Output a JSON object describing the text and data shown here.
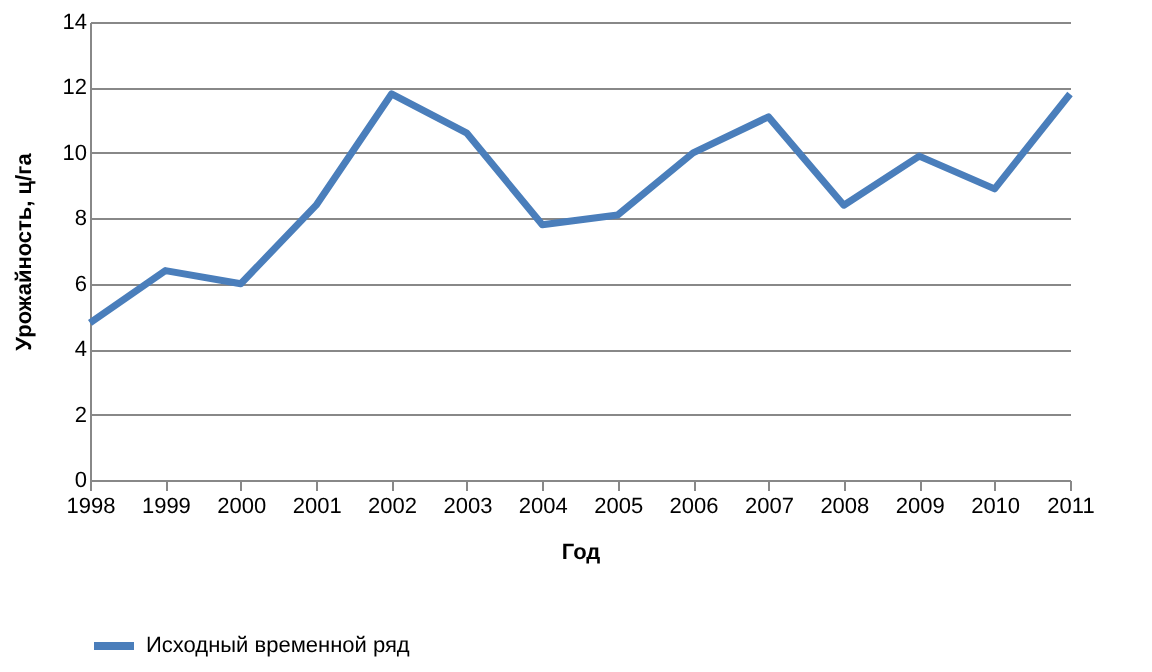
{
  "chart_data": {
    "type": "line",
    "xlabel": "Год",
    "ylabel": "Урожайность, ц/га",
    "categories": [
      "1998",
      "1999",
      "2000",
      "2001",
      "2002",
      "2003",
      "2004",
      "2005",
      "2006",
      "2007",
      "2008",
      "2009",
      "2010",
      "2011"
    ],
    "series": [
      {
        "name": "Исходный временной ряд",
        "color": "#4a7ebb",
        "values": [
          4.8,
          6.4,
          6.0,
          8.4,
          11.8,
          10.6,
          7.8,
          8.1,
          10.0,
          11.1,
          8.4,
          9.9,
          8.9,
          11.8
        ]
      }
    ],
    "ylim": [
      0,
      14
    ],
    "yticks": [
      0,
      2,
      4,
      6,
      8,
      10,
      12,
      14
    ],
    "grid": "y",
    "legend": "bottom",
    "marker": "none",
    "line_style": "solid"
  }
}
